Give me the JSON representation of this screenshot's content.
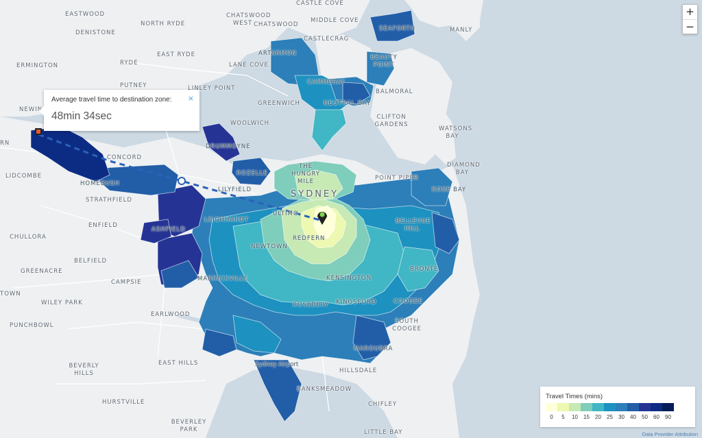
{
  "zoom": {
    "in_label": "+",
    "out_label": "−"
  },
  "popup": {
    "label": "Average travel time to destination zone:",
    "value": "48min 34sec",
    "close": "×"
  },
  "legend": {
    "title": "Travel Times (mins)",
    "ticks": [
      "0",
      "5",
      "10",
      "15",
      "20",
      "25",
      "30",
      "40",
      "50",
      "60",
      "90"
    ],
    "colors": [
      "#ffffd9",
      "#edf8b1",
      "#c7e9b4",
      "#7fcdbb",
      "#41b6c4",
      "#1d91c0",
      "#2c7fb8",
      "#225ea8",
      "#253494",
      "#0c2c84",
      "#081d58"
    ]
  },
  "attribution": "Data Provider Attribution",
  "city_label": "SYDNEY",
  "places": {
    "p0": "EASTWOOD",
    "p1": "DENISTONE",
    "p2": "NORTH RYDE",
    "p3": "CHATSWOOD WEST",
    "p4": "CHATSWOOD",
    "p5": "CASTLE COVE",
    "p6": "MIDDLE COVE",
    "p7": "CASTLECRAG",
    "p8": "SEAFORTH",
    "p9": "MANLY",
    "p10": "BEAUTY POINT",
    "p11": "ARTARMON",
    "p12": "EAST RYDE",
    "p13": "RYDE",
    "p14": "ERMINGTON",
    "p15": "LANE COVE",
    "p16": "CAMMERAY",
    "p17": "BALMORAL",
    "p18": "PUTNEY",
    "p19": "LINLEY POINT",
    "p20": "NEUTRAL BAY",
    "p21": "GREENWICH",
    "p22": "CLIFTON GARDENS",
    "p23": "NEWING",
    "p24": "WOOLWICH",
    "p25": "WATSONS BAY",
    "p26": "RN",
    "p27": "CONCORD",
    "p28": "DRUMMOYNE",
    "p29": "THE HUNGRY MILE",
    "p30": "DIAMOND BAY",
    "p31": "LIDCOMBE",
    "p32": "HOMEBUSH",
    "p33": "ROZELLE",
    "p34": "POINT PIPER",
    "p35": "LILYFIELD",
    "p36": "ROSE BAY",
    "p37": "STRATHFIELD",
    "p38": "LEICHHARDT",
    "p39": "ULTIMO",
    "p40": "BELLEVUE HILL",
    "p41": "ENFIELD",
    "p42": "ASHFIELD",
    "p43": "CHULLORA",
    "p44": "REDFERN",
    "p45": "NEWTOWN",
    "p46": "BELFIELD",
    "p47": "BRONTE",
    "p48": "GREENACRE",
    "p49": "MARRICKVILLE",
    "p50": "CAMPSIE",
    "p51": "KENSINGTON",
    "p52": "TOWN",
    "p53": "WILEY PARK",
    "p54": "ROSEBERY",
    "p55": "KINGSFORD",
    "p56": "COOGEE",
    "p57": "PUNCHBOWL",
    "p58": "EARLWOOD",
    "p59": "SOUTH COOGEE",
    "p60": "MAROUBRA",
    "p61": "EAST HILLS",
    "p62": "Sydney Airport",
    "p63": "BEVERLY HILLS",
    "p64": "HILLSDALE",
    "p65": "BANKSMEADOW",
    "p66": "CHIFLEY",
    "p67": "HURSTVILLE",
    "p68": "BEVERLEY PARK",
    "p69": "LITTLE BAY"
  }
}
